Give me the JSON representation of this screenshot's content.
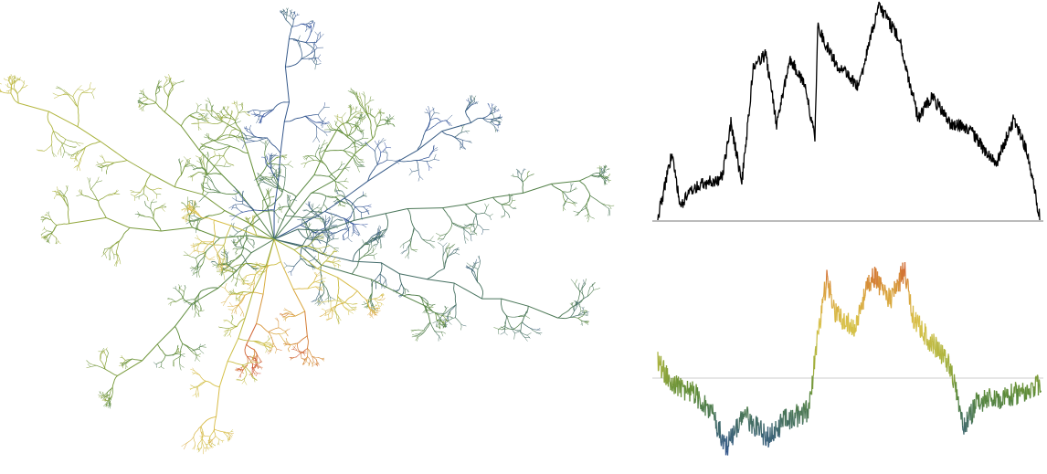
{
  "figure": {
    "panels": [
      {
        "id": "tree",
        "kind": "random-tree-embedding",
        "colormap_name": "height-colormap"
      },
      {
        "id": "contour",
        "kind": "contour-function-excursion",
        "line_color": "#000000",
        "baseline_color": "#777777"
      },
      {
        "id": "label",
        "kind": "label-process",
        "baseline_color": "#cccccc",
        "colormap_name": "height-colormap"
      }
    ],
    "colormap": {
      "name": "height-colormap",
      "stops": [
        "#2f4fa0",
        "#3e6670",
        "#5a8a3a",
        "#a8b23c",
        "#d8c24a",
        "#d9a03c",
        "#cc4a2f"
      ]
    }
  }
}
